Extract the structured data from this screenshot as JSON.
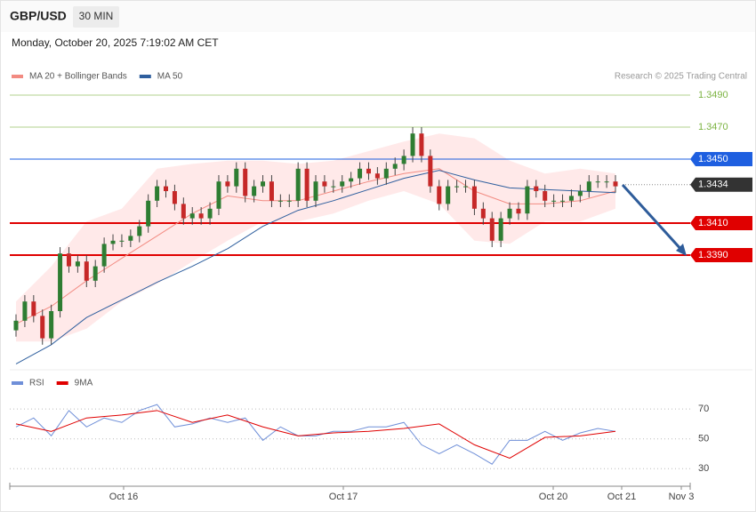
{
  "header": {
    "symbol": "GBP/USD",
    "interval": "30 MIN",
    "timestamp": "Monday, October 20, 2025 7:19:02 AM CET"
  },
  "chart_data": [
    {
      "type": "candlestick",
      "legend": [
        {
          "name": "MA 20 + Bollinger Bands",
          "color": "#f28b82"
        },
        {
          "name": "MA 50",
          "color": "#2f5f9e"
        }
      ],
      "credit": "Research © 2025 Trading Central",
      "up_color": "#2e7d32",
      "down_color": "#c62828",
      "open": [
        1.3343,
        1.3349,
        1.3361,
        1.3352,
        1.3338,
        1.3355,
        1.3391,
        1.3383,
        1.3386,
        1.3374,
        1.3383,
        1.3397,
        1.3399,
        1.3399,
        1.3402,
        1.3408,
        1.3424,
        1.3433,
        1.343,
        1.3422,
        1.3413,
        1.3416,
        1.3413,
        1.3419,
        1.3436,
        1.3433,
        1.3444,
        1.3427,
        1.3433,
        1.3436,
        1.3424,
        1.3424,
        1.3424,
        1.3444,
        1.3424,
        1.3436,
        1.3433,
        1.3433,
        1.3436,
        1.3438,
        1.3444,
        1.3441,
        1.3438,
        1.3444,
        1.3447,
        1.3452,
        1.3466,
        1.3452,
        1.3433,
        1.3422,
        1.3433,
        1.3433,
        1.3433,
        1.3419,
        1.3413,
        1.3399,
        1.3413,
        1.3419,
        1.3416,
        1.3433,
        1.343,
        1.3424,
        1.3424,
        1.3424,
        1.3427,
        1.343,
        1.3436,
        1.3436,
        1.3436
      ],
      "high": [
        1.3353,
        1.3365,
        1.3365,
        1.3356,
        1.3359,
        1.3395,
        1.3395,
        1.339,
        1.339,
        1.3387,
        1.3401,
        1.3403,
        1.3403,
        1.3406,
        1.3412,
        1.3428,
        1.3437,
        1.3437,
        1.3434,
        1.3426,
        1.342,
        1.342,
        1.3423,
        1.344,
        1.344,
        1.3448,
        1.3448,
        1.3437,
        1.344,
        1.344,
        1.3428,
        1.3428,
        1.3448,
        1.3448,
        1.344,
        1.344,
        1.3437,
        1.344,
        1.3442,
        1.3448,
        1.3448,
        1.3445,
        1.3448,
        1.3451,
        1.3456,
        1.347,
        1.347,
        1.3456,
        1.3437,
        1.3437,
        1.3437,
        1.3437,
        1.3437,
        1.3423,
        1.3417,
        1.3417,
        1.3423,
        1.3423,
        1.3437,
        1.3437,
        1.3434,
        1.3428,
        1.3428,
        1.3431,
        1.3434,
        1.344,
        1.344,
        1.344,
        1.344
      ],
      "low": [
        1.3339,
        1.3345,
        1.3348,
        1.3334,
        1.3334,
        1.3351,
        1.3379,
        1.3379,
        1.337,
        1.337,
        1.3379,
        1.3393,
        1.3395,
        1.3395,
        1.3398,
        1.3404,
        1.342,
        1.3426,
        1.3418,
        1.3409,
        1.3409,
        1.3409,
        1.3409,
        1.3415,
        1.3429,
        1.3429,
        1.3423,
        1.3423,
        1.3429,
        1.342,
        1.342,
        1.342,
        1.342,
        1.342,
        1.342,
        1.3429,
        1.3429,
        1.3429,
        1.3432,
        1.3434,
        1.3437,
        1.3434,
        1.3434,
        1.344,
        1.3443,
        1.3448,
        1.3448,
        1.3429,
        1.3418,
        1.3418,
        1.3429,
        1.3429,
        1.3415,
        1.3409,
        1.3395,
        1.3395,
        1.3409,
        1.3412,
        1.3412,
        1.3426,
        1.342,
        1.342,
        1.342,
        1.342,
        1.3423,
        1.3426,
        1.3432,
        1.3432,
        1.3429
      ],
      "close": [
        1.3349,
        1.3361,
        1.3352,
        1.3338,
        1.3355,
        1.3391,
        1.3383,
        1.3386,
        1.3374,
        1.3383,
        1.3397,
        1.3399,
        1.3399,
        1.3402,
        1.3408,
        1.3424,
        1.3433,
        1.343,
        1.3422,
        1.3413,
        1.3416,
        1.3413,
        1.3419,
        1.3436,
        1.3433,
        1.3444,
        1.3427,
        1.3433,
        1.3436,
        1.3424,
        1.3424,
        1.3424,
        1.3444,
        1.3424,
        1.3436,
        1.3433,
        1.3433,
        1.3436,
        1.3438,
        1.3444,
        1.3441,
        1.3438,
        1.3444,
        1.3447,
        1.3452,
        1.3466,
        1.3452,
        1.3433,
        1.3422,
        1.3433,
        1.3433,
        1.3433,
        1.3419,
        1.3413,
        1.3399,
        1.3413,
        1.3419,
        1.3416,
        1.3433,
        1.343,
        1.3424,
        1.3424,
        1.3424,
        1.3427,
        1.343,
        1.3436,
        1.3436,
        1.3436,
        1.3433
      ],
      "ma20": [
        1.3347,
        1.3358,
        1.3374,
        1.3388,
        1.3402,
        1.3416,
        1.3427,
        1.3424,
        1.3424,
        1.343,
        1.3436,
        1.3441,
        1.3444,
        1.343,
        1.3422,
        1.3422,
        1.3424,
        1.343
      ],
      "ma50": [
        1.3322,
        1.3334,
        1.3351,
        1.3362,
        1.3373,
        1.3383,
        1.3394,
        1.3408,
        1.3418,
        1.3424,
        1.3431,
        1.3438,
        1.3443,
        1.3437,
        1.3432,
        1.3431,
        1.343,
        1.3429
      ],
      "bb_upper": [
        1.3361,
        1.3383,
        1.3411,
        1.3419,
        1.3444,
        1.3447,
        1.3449,
        1.3449,
        1.3447,
        1.3449,
        1.3455,
        1.3461,
        1.3466,
        1.3463,
        1.3449,
        1.3441,
        1.3444,
        1.3441
      ],
      "bb_lower": [
        1.3336,
        1.3336,
        1.3344,
        1.3361,
        1.3372,
        1.3386,
        1.3399,
        1.3411,
        1.3411,
        1.3416,
        1.3424,
        1.343,
        1.3422,
        1.3399,
        1.3397,
        1.3411,
        1.3411,
        1.3419
      ],
      "levels": [
        {
          "value": 1.349,
          "label": "1.3490",
          "color": "#7cb342",
          "style": "thin",
          "boxed": false
        },
        {
          "value": 1.347,
          "label": "1.3470",
          "color": "#7cb342",
          "style": "thin",
          "boxed": false
        },
        {
          "value": 1.345,
          "label": "1.3450",
          "color": "#1e5fe0",
          "style": "thin",
          "boxed": true
        },
        {
          "value": 1.3434,
          "label": "1.3434",
          "color": "#333333",
          "style": "dotted",
          "boxed": true
        },
        {
          "value": 1.341,
          "label": "1.3410",
          "color": "#e00000",
          "style": "thick",
          "boxed": true
        },
        {
          "value": 1.339,
          "label": "1.3390",
          "color": "#e00000",
          "style": "thick",
          "boxed": true
        }
      ],
      "ylim": [
        1.332,
        1.3496
      ],
      "x_labels": [
        "Oct 16",
        "Oct 17",
        "Oct 20",
        "Oct 21",
        "Nov 3"
      ]
    },
    {
      "type": "line",
      "series": [
        {
          "name": "RSI",
          "color": "#6f8fd8",
          "values": [
            58,
            64,
            52,
            69,
            58,
            64,
            61,
            69,
            73,
            58,
            60,
            64,
            61,
            64,
            49,
            58,
            52,
            52,
            55,
            55,
            58,
            58,
            61,
            46,
            40,
            46,
            40,
            33,
            49,
            49,
            55,
            49,
            54,
            57,
            55
          ]
        },
        {
          "name": "9MA",
          "color": "#e00000",
          "values": [
            60,
            55,
            64,
            66,
            69,
            61,
            66,
            58,
            52,
            54,
            55,
            57,
            60,
            46,
            37,
            51,
            52,
            55
          ]
        }
      ],
      "ylim": [
        20,
        85
      ],
      "yticks": [
        30,
        50,
        70
      ]
    }
  ]
}
